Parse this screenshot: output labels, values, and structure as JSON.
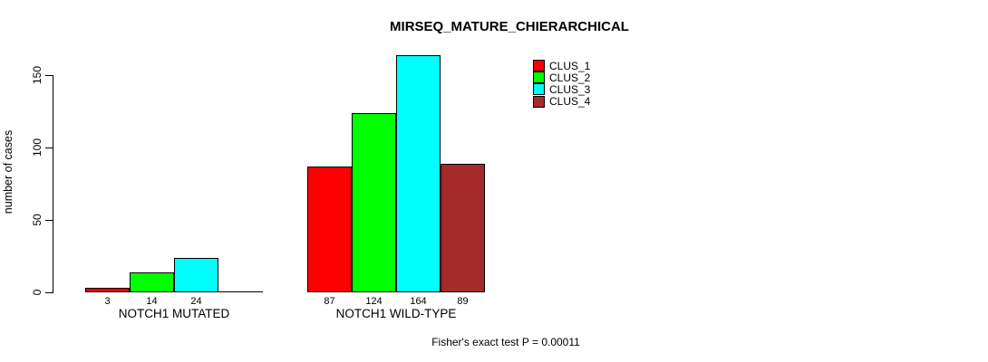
{
  "chart_data": {
    "type": "bar",
    "title": "MIRSEQ_MATURE_CHIERARCHICAL",
    "ylabel": "number of cases",
    "xlabel": "",
    "yticks": [
      0,
      50,
      100,
      150
    ],
    "ylim": [
      0,
      170
    ],
    "grid": false,
    "legend_position": "top-right",
    "categories": [
      "NOTCH1 MUTATED",
      "NOTCH1 WILD-TYPE"
    ],
    "series": [
      {
        "name": "CLUS_1",
        "color": "#FF0000",
        "values": [
          3,
          87
        ]
      },
      {
        "name": "CLUS_2",
        "color": "#00FF00",
        "values": [
          14,
          124
        ]
      },
      {
        "name": "CLUS_3",
        "color": "#00FFFF",
        "values": [
          24,
          164
        ]
      },
      {
        "name": "CLUS_4",
        "color": "#A52A2A",
        "values": [
          0,
          89
        ]
      }
    ],
    "bar_value_labels": [
      [
        "3",
        "14",
        "24",
        ""
      ],
      [
        "87",
        "124",
        "164",
        "89"
      ]
    ],
    "annotation": "Fisher's exact test P = 0.00011"
  }
}
